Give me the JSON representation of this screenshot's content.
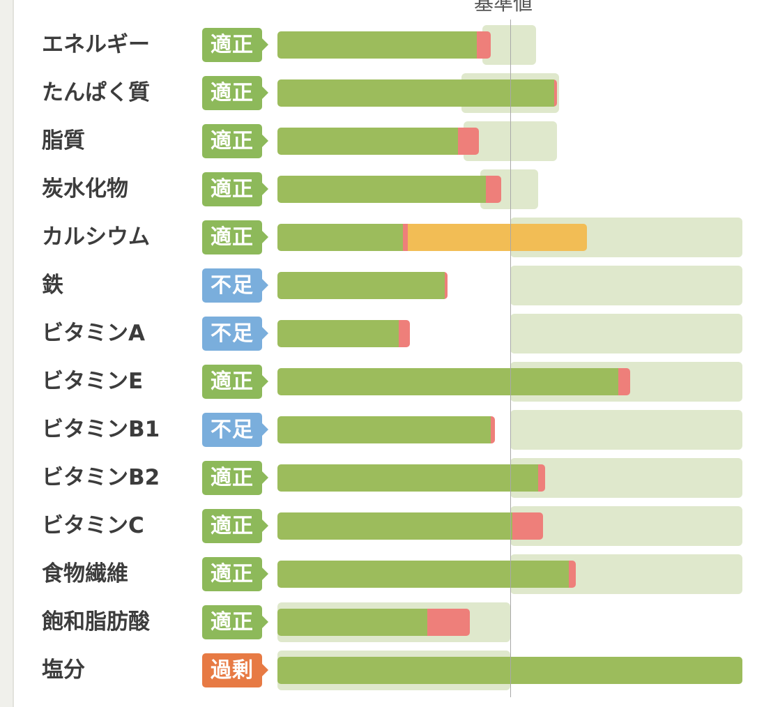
{
  "chart_data": {
    "type": "bar",
    "orientation": "horizontal",
    "stacked": true,
    "reference_label": "基準値",
    "reference_value": 100,
    "x_units": "percent of standard value",
    "xlim": [
      0,
      200
    ],
    "colors": {
      "base": "#9cbc5c",
      "extra": "#ee7f7a",
      "supplement": "#f2bd55",
      "range": "#dfe8cc",
      "status_適正": "#8db95a",
      "status_不足": "#7aaedc",
      "status_過剰": "#e77a44"
    },
    "rows": [
      {
        "label": "エネルギー",
        "status": "適正",
        "segments": [
          {
            "type": "base",
            "value": 85.5
          },
          {
            "type": "extra",
            "value": 6
          }
        ],
        "range": [
          88,
          111
        ]
      },
      {
        "label": "たんぱく質",
        "status": "適正",
        "segments": [
          {
            "type": "base",
            "value": 119
          },
          {
            "type": "extra",
            "value": 1
          }
        ],
        "range": [
          79,
          121
        ]
      },
      {
        "label": "脂質",
        "status": "適正",
        "segments": [
          {
            "type": "base",
            "value": 77.5
          },
          {
            "type": "extra",
            "value": 9
          }
        ],
        "range": [
          80,
          120
        ]
      },
      {
        "label": "炭水化物",
        "status": "適正",
        "segments": [
          {
            "type": "base",
            "value": 89.5
          },
          {
            "type": "extra",
            "value": 6.5
          }
        ],
        "range": [
          87,
          112
        ]
      },
      {
        "label": "カルシウム",
        "status": "適正",
        "segments": [
          {
            "type": "base",
            "value": 54
          },
          {
            "type": "extra",
            "value": 2
          },
          {
            "type": "supplement",
            "value": 77
          }
        ],
        "range": [
          100,
          200
        ]
      },
      {
        "label": "鉄",
        "status": "不足",
        "segments": [
          {
            "type": "base",
            "value": 72
          },
          {
            "type": "extra",
            "value": 1
          }
        ],
        "range": [
          100,
          200
        ]
      },
      {
        "label": "ビタミンA",
        "status": "不足",
        "segments": [
          {
            "type": "base",
            "value": 52
          },
          {
            "type": "extra",
            "value": 5
          }
        ],
        "range": [
          100,
          200
        ]
      },
      {
        "label": "ビタミンE",
        "status": "適正",
        "segments": [
          {
            "type": "base",
            "value": 146.5
          },
          {
            "type": "extra",
            "value": 5
          }
        ],
        "range": [
          100,
          200
        ]
      },
      {
        "label": "ビタミンB1",
        "status": "不足",
        "segments": [
          {
            "type": "base",
            "value": 91.5
          },
          {
            "type": "extra",
            "value": 2
          }
        ],
        "range": [
          100,
          200
        ]
      },
      {
        "label": "ビタミンB2",
        "status": "適正",
        "segments": [
          {
            "type": "base",
            "value": 112
          },
          {
            "type": "extra",
            "value": 3
          }
        ],
        "range": [
          100,
          200
        ]
      },
      {
        "label": "ビタミンC",
        "status": "適正",
        "segments": [
          {
            "type": "base",
            "value": 101
          },
          {
            "type": "extra",
            "value": 13
          }
        ],
        "range": [
          100,
          200
        ]
      },
      {
        "label": "食物繊維",
        "status": "適正",
        "segments": [
          {
            "type": "base",
            "value": 125
          },
          {
            "type": "extra",
            "value": 3
          }
        ],
        "range": [
          100,
          200
        ]
      },
      {
        "label": "飽和脂肪酸",
        "status": "適正",
        "segments": [
          {
            "type": "base",
            "value": 64.5
          },
          {
            "type": "extra",
            "value": 18
          }
        ],
        "range": [
          0,
          100
        ]
      },
      {
        "label": "塩分",
        "status": "過剰",
        "segments": [
          {
            "type": "base",
            "value": 200
          }
        ],
        "range": [
          0,
          100
        ]
      }
    ]
  }
}
